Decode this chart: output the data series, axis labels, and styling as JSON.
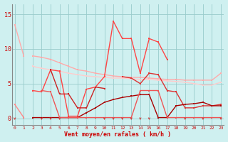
{
  "xlabel": "Vent moyen/en rafales ( km/h )",
  "bg_color": "#cff0f0",
  "grid_color": "#99cccc",
  "yticks": [
    0,
    5,
    10,
    15
  ],
  "xlim": [
    -0.3,
    23.3
  ],
  "ylim": [
    -1.0,
    16.5
  ],
  "x": [
    0,
    1,
    2,
    3,
    4,
    5,
    6,
    7,
    8,
    9,
    10,
    11,
    12,
    13,
    14,
    15,
    16,
    17,
    18,
    19,
    20,
    21,
    22,
    23
  ],
  "lines": [
    {
      "color": "#ffaaaa",
      "lw": 1.0,
      "y": [
        13.5,
        9.0,
        null,
        null,
        null,
        null,
        null,
        null,
        null,
        null,
        null,
        null,
        null,
        null,
        null,
        null,
        null,
        null,
        null,
        null,
        null,
        null,
        null,
        null
      ]
    },
    {
      "color": "#ffaaaa",
      "lw": 1.0,
      "y": [
        null,
        null,
        9.0,
        8.8,
        8.5,
        8.0,
        7.5,
        7.0,
        6.8,
        6.5,
        6.3,
        6.1,
        6.0,
        5.9,
        5.9,
        5.8,
        5.7,
        5.6,
        5.6,
        5.5,
        5.5,
        5.5,
        5.5,
        6.5
      ]
    },
    {
      "color": "#ffcccc",
      "lw": 1.0,
      "y": [
        null,
        null,
        7.5,
        7.2,
        7.0,
        6.8,
        6.5,
        6.3,
        6.1,
        6.0,
        5.9,
        5.8,
        5.8,
        5.7,
        5.6,
        5.6,
        5.5,
        5.4,
        5.3,
        5.2,
        5.0,
        4.8,
        4.8,
        5.2
      ]
    },
    {
      "color": "#ff8888",
      "lw": 1.0,
      "y": [
        2.0,
        0.1,
        null,
        null,
        null,
        null,
        null,
        null,
        null,
        null,
        null,
        null,
        null,
        null,
        null,
        null,
        null,
        null,
        null,
        null,
        null,
        null,
        null,
        null
      ]
    },
    {
      "color": "#ff4444",
      "lw": 1.0,
      "y": [
        null,
        null,
        4.0,
        3.8,
        7.0,
        6.8,
        0.3,
        0.3,
        4.2,
        4.5,
        6.0,
        14.0,
        11.5,
        11.5,
        6.5,
        11.5,
        11.0,
        8.5,
        null,
        null,
        null,
        null,
        null,
        null
      ]
    },
    {
      "color": "#cc2222",
      "lw": 1.0,
      "y": [
        null,
        null,
        null,
        null,
        7.0,
        3.5,
        3.5,
        1.5,
        1.5,
        4.5,
        4.3,
        null,
        null,
        null,
        null,
        null,
        null,
        null,
        null,
        null,
        null,
        null,
        null,
        null
      ]
    },
    {
      "color": "#dd3333",
      "lw": 1.0,
      "y": [
        null,
        null,
        null,
        null,
        null,
        null,
        null,
        null,
        null,
        null,
        null,
        null,
        6.0,
        5.8,
        5.0,
        6.5,
        6.3,
        4.0,
        3.8,
        1.5,
        1.5,
        1.8,
        1.8,
        2.0
      ]
    },
    {
      "color": "#aa0000",
      "lw": 1.0,
      "y": [
        null,
        null,
        0.1,
        0.1,
        0.1,
        0.1,
        0.1,
        0.1,
        0.8,
        1.5,
        2.3,
        2.7,
        3.0,
        3.2,
        3.4,
        3.4,
        0.1,
        0.1,
        1.8,
        2.0,
        2.1,
        2.3,
        1.8,
        1.8
      ]
    },
    {
      "color": "#ee5555",
      "lw": 1.0,
      "y": [
        null,
        null,
        null,
        4.0,
        3.8,
        0.1,
        0.1,
        0.1,
        0.1,
        0.1,
        0.1,
        0.1,
        0.1,
        0.1,
        4.0,
        4.0,
        4.0,
        0.1,
        0.1,
        0.1,
        0.1,
        0.1,
        0.1,
        0.1
      ]
    }
  ],
  "arrows_x": [
    0,
    3,
    4,
    5,
    10,
    11,
    12,
    13,
    14,
    15,
    19,
    21,
    23
  ]
}
